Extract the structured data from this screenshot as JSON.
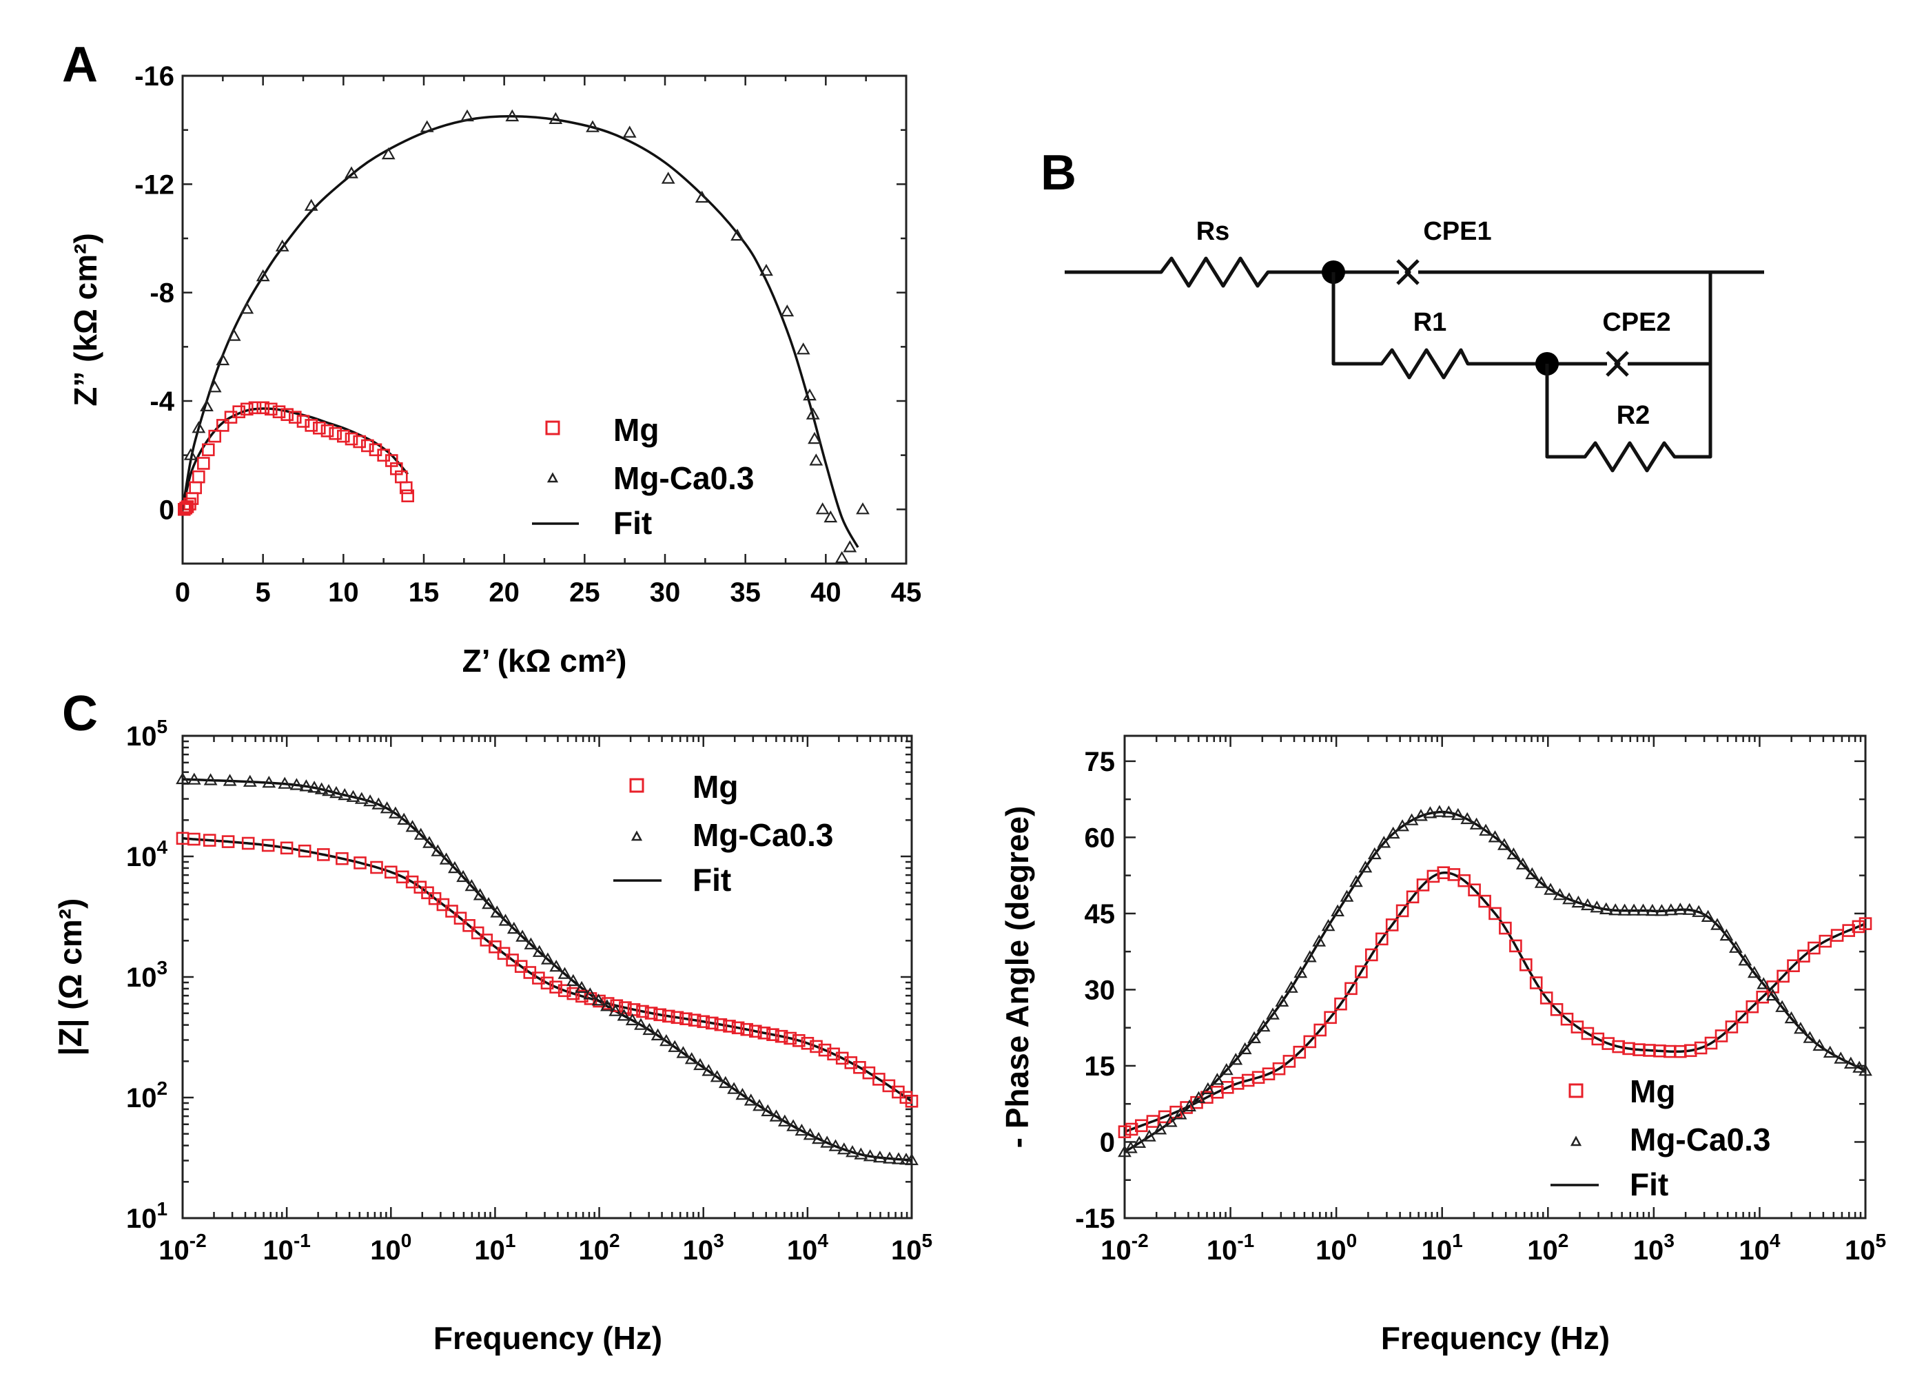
{
  "colors": {
    "mg": "#e8202a",
    "mgca": "#222222",
    "fit": "#111111",
    "axis": "#222222"
  },
  "legend_labels": {
    "mg": "Mg",
    "mgca": "Mg-Ca0.3",
    "fit": "Fit"
  },
  "panels": {
    "a": "A",
    "b": "B",
    "c": "C"
  },
  "circuit": {
    "rs": "Rs",
    "cpe1": "CPE1",
    "r1": "R1",
    "cpe2": "CPE2",
    "r2": "R2"
  },
  "chart_data": [
    {
      "id": "nyquist",
      "type": "scatter",
      "title": "",
      "xlabel": "Z’ (kΩ cm²)",
      "ylabel": "Z” (kΩ cm²)",
      "xlim": [
        0,
        45
      ],
      "ylim": [
        2,
        -16
      ],
      "xticks": [
        0,
        5,
        10,
        15,
        20,
        25,
        30,
        35,
        40,
        45
      ],
      "yticks": [
        0,
        -4,
        -8,
        -12,
        -16
      ],
      "legend": "bottom-right",
      "series": [
        {
          "name": "Mg",
          "marker": "square",
          "x": [
            0.1,
            0.2,
            0.3,
            0.45,
            0.6,
            0.8,
            1.0,
            1.3,
            1.6,
            2.0,
            2.5,
            3.0,
            3.5,
            4.0,
            4.5,
            5.0,
            5.5,
            6.0,
            6.5,
            7.0,
            7.5,
            8.0,
            8.5,
            9.0,
            9.5,
            10.0,
            10.5,
            11.0,
            11.5,
            12.0,
            12.5,
            13.0,
            13.3,
            13.6,
            13.9,
            14.0
          ],
          "y": [
            0,
            -0.05,
            -0.1,
            -0.2,
            -0.4,
            -0.8,
            -1.2,
            -1.7,
            -2.2,
            -2.7,
            -3.1,
            -3.4,
            -3.6,
            -3.7,
            -3.75,
            -3.75,
            -3.7,
            -3.6,
            -3.5,
            -3.4,
            -3.25,
            -3.1,
            -3.0,
            -2.9,
            -2.8,
            -2.7,
            -2.6,
            -2.5,
            -2.35,
            -2.2,
            -2.0,
            -1.8,
            -1.5,
            -1.2,
            -0.8,
            -0.5
          ]
        },
        {
          "name": "Mg-Ca0.3",
          "marker": "triangle",
          "x": [
            0.5,
            1.0,
            1.5,
            2.0,
            2.5,
            3.2,
            4.0,
            5.0,
            6.2,
            8.0,
            10.5,
            12.8,
            15.2,
            17.7,
            20.5,
            23.2,
            25.5,
            27.8,
            30.2,
            32.3,
            34.5,
            36.3,
            37.6,
            38.6,
            39.0,
            39.2,
            39.3,
            39.4,
            39.8,
            40.3,
            41.0,
            41.5,
            42.3
          ],
          "y": [
            -2.0,
            -3.0,
            -3.8,
            -4.5,
            -5.5,
            -6.4,
            -7.4,
            -8.6,
            -9.7,
            -11.2,
            -12.4,
            -13.1,
            -14.1,
            -14.5,
            -14.5,
            -14.4,
            -14.1,
            -13.9,
            -12.2,
            -11.5,
            -10.1,
            -8.8,
            -7.3,
            -5.9,
            -4.2,
            -3.5,
            -2.6,
            -1.8,
            0,
            0.3,
            1.8,
            1.4,
            0
          ]
        },
        {
          "name": "Fit",
          "marker": "line",
          "x": [
            0,
            0.5,
            1,
            1.5,
            2,
            2.5,
            3,
            4,
            5,
            6,
            7,
            8,
            9,
            10,
            11,
            12,
            13,
            14
          ],
          "y": [
            0,
            -1.3,
            -2.0,
            -2.5,
            -2.9,
            -3.2,
            -3.4,
            -3.65,
            -3.72,
            -3.68,
            -3.55,
            -3.4,
            -3.2,
            -3.0,
            -2.75,
            -2.45,
            -2.0,
            -1.3
          ]
        },
        {
          "name": "Fit",
          "marker": "line",
          "x": [
            0,
            0.5,
            1,
            2,
            3,
            4,
            5,
            6,
            8,
            10,
            12,
            15,
            18,
            21,
            24,
            27,
            30,
            33,
            35,
            36,
            37,
            38,
            39,
            40,
            41,
            42
          ],
          "y": [
            0,
            -1.8,
            -3.0,
            -4.9,
            -6.4,
            -7.6,
            -8.6,
            -9.5,
            -11.0,
            -12.1,
            -13.0,
            -13.9,
            -14.4,
            -14.5,
            -14.3,
            -13.8,
            -12.8,
            -11.2,
            -9.8,
            -8.8,
            -7.5,
            -5.9,
            -3.9,
            -1.7,
            0.3,
            1.4
          ]
        }
      ]
    },
    {
      "id": "bode-mod",
      "type": "scatter",
      "title": "",
      "xlabel": "Frequency (Hz)",
      "ylabel": "|Z| (Ω cm²)",
      "xscale": "log",
      "yscale": "log",
      "xlim": [
        0.01,
        100000
      ],
      "ylim": [
        10,
        100000
      ],
      "xtick_exponents": [
        -2,
        -1,
        0,
        1,
        2,
        3,
        4,
        5
      ],
      "ytick_exponents": [
        1,
        2,
        3,
        4,
        5
      ],
      "tick_base": "10",
      "legend": "top-right",
      "series": [
        {
          "name": "Mg",
          "marker": "square",
          "logf": [
            -2,
            -1,
            0,
            0.5,
            1,
            1.5,
            2,
            2.5,
            3,
            3.5,
            4,
            4.5,
            5
          ],
          "logz": [
            4.15,
            4.07,
            3.87,
            3.6,
            3.25,
            2.95,
            2.8,
            2.7,
            2.63,
            2.55,
            2.45,
            2.25,
            1.97
          ]
        },
        {
          "name": "Mg-Ca0.3",
          "marker": "triangle",
          "logf": [
            -2,
            -1,
            -0.5,
            0,
            0.5,
            1,
            1.5,
            2,
            2.5,
            3,
            3.5,
            4,
            4.5,
            5
          ],
          "logz": [
            4.64,
            4.6,
            4.52,
            4.38,
            4.0,
            3.55,
            3.15,
            2.8,
            2.55,
            2.25,
            1.95,
            1.7,
            1.53,
            1.48
          ]
        },
        {
          "name": "Fit",
          "marker": "line",
          "logf": [
            -2,
            -1,
            0,
            0.5,
            1,
            1.5,
            2,
            2.5,
            3,
            3.5,
            4,
            4.5,
            5
          ],
          "logz": [
            4.15,
            4.07,
            3.87,
            3.6,
            3.25,
            2.95,
            2.8,
            2.7,
            2.63,
            2.55,
            2.45,
            2.25,
            1.97
          ]
        },
        {
          "name": "Fit",
          "marker": "line",
          "logf": [
            -2,
            -1,
            -0.5,
            0,
            0.5,
            1,
            1.5,
            2,
            2.5,
            3,
            3.5,
            4,
            4.5,
            5
          ],
          "logz": [
            4.64,
            4.6,
            4.52,
            4.38,
            4.0,
            3.55,
            3.15,
            2.8,
            2.55,
            2.25,
            1.95,
            1.7,
            1.53,
            1.48
          ]
        }
      ]
    },
    {
      "id": "bode-phase",
      "type": "scatter",
      "title": "",
      "xlabel": "Frequency (Hz)",
      "ylabel": "- Phase Angle (degree)",
      "xscale": "log",
      "xlim": [
        0.01,
        100000
      ],
      "ylim": [
        -15,
        80
      ],
      "xtick_exponents": [
        -2,
        -1,
        0,
        1,
        2,
        3,
        4,
        5
      ],
      "yticks": [
        -15,
        0,
        15,
        30,
        45,
        60,
        75
      ],
      "tick_base": "10",
      "legend": "bottom-right",
      "series": [
        {
          "name": "Mg",
          "marker": "square",
          "logf": [
            -2,
            -1.5,
            -1,
            -0.5,
            0,
            0.5,
            1,
            1.5,
            2,
            2.5,
            3,
            3.5,
            4,
            4.5,
            5
          ],
          "phase": [
            2,
            6,
            11,
            15,
            26,
            42,
            53,
            45,
            28,
            20,
            18,
            19,
            28,
            38,
            43
          ]
        },
        {
          "name": "Mg-Ca0.3",
          "marker": "triangle",
          "logf": [
            -2,
            -1.5,
            -1,
            -0.5,
            0,
            0.5,
            1,
            1.5,
            2,
            2.5,
            3,
            3.5,
            4,
            4.5,
            5
          ],
          "phase": [
            -2,
            5,
            15,
            28,
            45,
            60,
            65,
            60,
            50,
            46,
            45.5,
            44.5,
            32,
            20,
            14
          ]
        },
        {
          "name": "Fit",
          "marker": "line",
          "logf": [
            -2,
            -1.5,
            -1,
            -0.5,
            0,
            0.5,
            1,
            1.5,
            2,
            2.5,
            3,
            3.5,
            4,
            4.5,
            5
          ],
          "phase": [
            2,
            6,
            11,
            15,
            26,
            42,
            53,
            45,
            28,
            20,
            18,
            19,
            28,
            38,
            43
          ]
        },
        {
          "name": "Fit",
          "marker": "line",
          "logf": [
            -2,
            -1.5,
            -1,
            -0.5,
            0,
            0.5,
            1,
            1.5,
            2,
            2.5,
            3,
            3.5,
            4,
            4.5,
            5
          ],
          "phase": [
            -2,
            5,
            15,
            28,
            45,
            60,
            65,
            60,
            50,
            46,
            45.5,
            44.5,
            32,
            20,
            14
          ]
        }
      ]
    }
  ]
}
